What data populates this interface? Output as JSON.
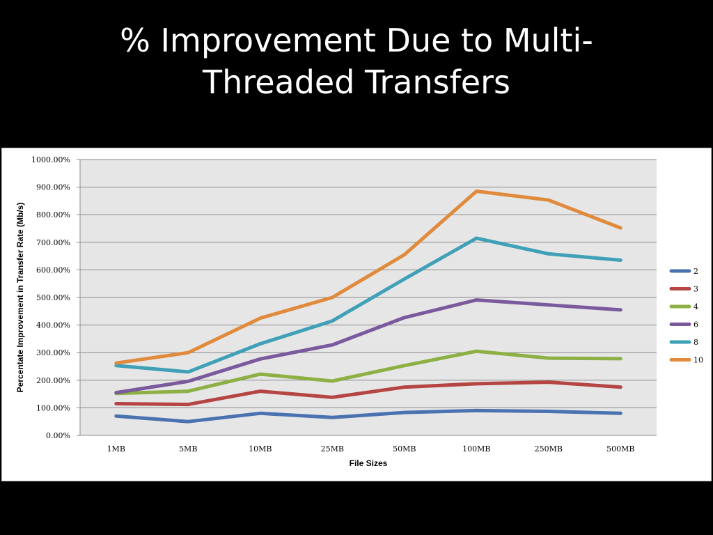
{
  "title_line1": "% Improvement Due to Multi-",
  "title_line2": "Threaded Transfers",
  "chart_data": {
    "type": "line",
    "xlabel": "File Sizes",
    "ylabel": "Percentate Improvement in Transfer Rate (Mb/s)",
    "categories": [
      "1MB",
      "5MB",
      "10MB",
      "25MB",
      "50MB",
      "100MB",
      "250MB",
      "500MB"
    ],
    "ylim": [
      0,
      1000
    ],
    "yticks": [
      "0.00%",
      "100.00%",
      "200.00%",
      "300.00%",
      "400.00%",
      "500.00%",
      "600.00%",
      "700.00%",
      "800.00%",
      "900.00%",
      "1000.00%"
    ],
    "grid": true,
    "legend": "right",
    "series": [
      {
        "name": "2",
        "color": "#4a72b0",
        "values": [
          70,
          50,
          80,
          65,
          83,
          90,
          87,
          80
        ]
      },
      {
        "name": "3",
        "color": "#b54543",
        "values": [
          115,
          112,
          160,
          138,
          175,
          187,
          193,
          175
        ]
      },
      {
        "name": "4",
        "color": "#8cb043",
        "values": [
          152,
          160,
          222,
          197,
          253,
          305,
          280,
          278
        ]
      },
      {
        "name": "6",
        "color": "#7a5a9c",
        "values": [
          155,
          196,
          277,
          328,
          427,
          491,
          473,
          455
        ]
      },
      {
        "name": "8",
        "color": "#3fa0b8",
        "values": [
          253,
          230,
          332,
          415,
          567,
          715,
          658,
          635
        ]
      },
      {
        "name": "10",
        "color": "#e08a3c",
        "values": [
          262,
          300,
          425,
          500,
          655,
          885,
          853,
          752
        ]
      }
    ]
  }
}
